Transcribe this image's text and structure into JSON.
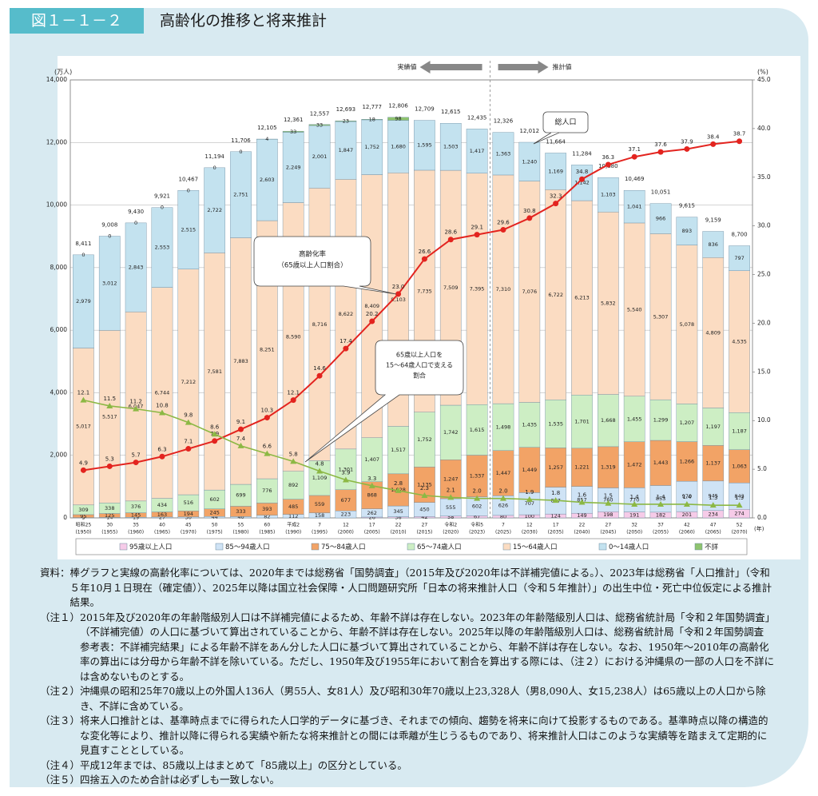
{
  "header": {
    "figure_no": "図１－１－２",
    "title": "高齢化の推移と将来推計"
  },
  "chart_data": {
    "type": "stacked-bar-line",
    "y_unit": "(万人)",
    "y2_unit": "(%)",
    "x_unit": "(年)",
    "categories": [
      "昭和25",
      "30",
      "35",
      "40",
      "45",
      "50",
      "55",
      "60",
      "平成2",
      "7",
      "12",
      "17",
      "22",
      "27",
      "令和2",
      "令和5",
      "7",
      "12",
      "17",
      "22",
      "27",
      "32",
      "37",
      "42",
      "47",
      "52"
    ],
    "category_years": [
      "(1950)",
      "(1955)",
      "(1960)",
      "(1965)",
      "(1970)",
      "(1975)",
      "(1980)",
      "(1985)",
      "(1990)",
      "(1995)",
      "(2000)",
      "(2005)",
      "(2010)",
      "(2015)",
      "(2020)",
      "(2023)",
      "(2025)",
      "(2030)",
      "(2035)",
      "(2040)",
      "(2045)",
      "(2050)",
      "(2055)",
      "(2060)",
      "(2065)",
      "(2070)"
    ],
    "ylim": [
      0,
      14000
    ],
    "yticks": [
      0,
      {
        "value": 2000,
        "label": "2,000"
      },
      {
        "value": 4000,
        "label": "4,000"
      },
      {
        "value": 6000,
        "label": "6,000"
      },
      {
        "value": 8000,
        "label": "8,000"
      },
      {
        "value": 10000,
        "label": "10,000"
      },
      {
        "value": 12000,
        "label": "12,000"
      },
      {
        "value": 14000,
        "label": "14,000"
      }
    ],
    "y2lim": [
      0,
      45
    ],
    "y2ticks": [
      {
        "value": 0,
        "label": "0.0"
      },
      {
        "value": 5,
        "label": "5.0"
      },
      {
        "value": 10,
        "label": "10.0"
      },
      {
        "value": 15,
        "label": "15.0"
      },
      {
        "value": 20,
        "label": "20.0"
      },
      {
        "value": 25,
        "label": "25.0"
      },
      {
        "value": 30,
        "label": "30.0"
      },
      {
        "value": 35,
        "label": "35.0"
      },
      {
        "value": 40,
        "label": "40.0"
      },
      {
        "value": 45,
        "label": "45.0"
      }
    ],
    "grid": true,
    "series": [
      {
        "name": "95歳以上人口",
        "color": "#f6cbe8",
        "values": [
          null,
          null,
          null,
          null,
          null,
          null,
          null,
          null,
          null,
          null,
          null,
          26,
          36,
          42,
          58,
          67,
          80,
          100,
          124,
          149,
          198,
          191,
          182,
          201,
          234,
          274
        ]
      },
      {
        "name": "85～94歳人口",
        "color": "#cfe3f5",
        "values": [
          9,
          14,
          19,
          27,
          30,
          44,
          40,
          82,
          112,
          158,
          223,
          262,
          345,
          450,
          555,
          602,
          626,
          707,
          857,
          857,
          760,
          770,
          853,
          970,
          945,
          843
        ]
      },
      {
        "name": "75～84歳人口",
        "color": "#f2a366",
        "values": [
          95,
          125,
          145,
          163,
          194,
          245,
          333,
          393,
          485,
          559,
          677,
          868,
          1028,
          1135,
          1247,
          1337,
          1447,
          1449,
          1257,
          1221,
          1319,
          1472,
          1443,
          1266,
          1137,
          1063
        ],
        "value_labels": [
          "95",
          "125",
          "145",
          "163",
          "194",
          "245",
          "333",
          "393",
          "485",
          "559",
          "677",
          "868",
          "1,028",
          "1,135",
          "1,247",
          "1,337",
          "1,447",
          "1,449",
          "1,257",
          "1,221",
          "1,319",
          "1,472",
          "1,443",
          "1,266",
          "1,137",
          "1,063"
        ]
      },
      {
        "name": "65～74歳人口",
        "color": "#cdeec4",
        "values": [
          309,
          338,
          376,
          434,
          516,
          602,
          699,
          776,
          892,
          1109,
          1301,
          1407,
          1517,
          1752,
          1742,
          1615,
          1498,
          1435,
          1535,
          1701,
          1668,
          1455,
          1299,
          1207,
          1197,
          1187
        ],
        "value_labels": [
          "309",
          "338",
          "376",
          "434",
          "516",
          "602",
          "699",
          "776",
          "892",
          "1,109",
          "1,301",
          "1,407",
          "1,517",
          "1,752",
          "1,742",
          "1,615",
          "1,498",
          "1,435",
          "1,535",
          "1,701",
          "1,668",
          "1,455",
          "1,299",
          "1,207",
          "1,197",
          "1,187"
        ]
      },
      {
        "name": "15～64歳人口",
        "color": "#fbdcc2",
        "values": [
          5017,
          5517,
          6047,
          6744,
          7212,
          7581,
          7883,
          8251,
          8590,
          8716,
          8622,
          8409,
          8103,
          7735,
          7509,
          7395,
          7310,
          7076,
          6722,
          6213,
          5832,
          5540,
          5307,
          5078,
          4809,
          4535
        ],
        "value_labels": [
          "5,017",
          "5,517",
          "6,047",
          "6,744",
          "7,212",
          "7,581",
          "7,883",
          "8,251",
          "8,590",
          "8,716",
          "8,622",
          "8,409",
          "8,103",
          "7,735",
          "7,509",
          "7,395",
          "7,310",
          "7,076",
          "6,722",
          "6,213",
          "5,832",
          "5,540",
          "5,307",
          "5,078",
          "4,809",
          "4,535"
        ]
      },
      {
        "name": "0～14歳人口",
        "color": "#c3e2ef",
        "values": [
          2979,
          3012,
          2843,
          2553,
          2515,
          2722,
          2751,
          2603,
          2249,
          2001,
          1847,
          1752,
          1680,
          1595,
          1503,
          1417,
          1363,
          1240,
          1169,
          1142,
          1103,
          1041,
          966,
          893,
          836,
          797
        ],
        "value_labels": [
          "2,979",
          "3,012",
          "2,843",
          "2,553",
          "2,515",
          "2,722",
          "2,751",
          "2,603",
          "2,249",
          "2,001",
          "1,847",
          "1,752",
          "1,680",
          "1,595",
          "1,503",
          "1,417",
          "1,363",
          "1,240",
          "1,169",
          "1,142",
          "1,103",
          "1,041",
          "966",
          "893",
          "836",
          "797"
        ]
      },
      {
        "name": "不詳",
        "color": "#8fc46f",
        "values": [
          0,
          0,
          0,
          0,
          0,
          0,
          0,
          4,
          33,
          33,
          23,
          18,
          98,
          null,
          null,
          null,
          null,
          null,
          null,
          null,
          null,
          null,
          null,
          null,
          null,
          null
        ]
      }
    ],
    "totals": {
      "values": [
        8411,
        9008,
        9430,
        9921,
        10467,
        11194,
        11706,
        12105,
        12361,
        12557,
        12693,
        12777,
        12806,
        12709,
        12615,
        12435,
        12326,
        12012,
        11664,
        11284,
        10880,
        10469,
        10051,
        9615,
        9159,
        8700
      ],
      "value_labels": [
        "8,411",
        "9,008",
        "9,430",
        "9,921",
        "10,467",
        "11,194",
        "11,706",
        "12,105",
        "12,361",
        "12,557",
        "12,693",
        "12,777",
        "12,806",
        "12,709",
        "12,615",
        "12,435",
        "12,326",
        "12,012",
        "11,664",
        "11,284",
        "10,880",
        "10,469",
        "10,051",
        "9,615",
        "9,159",
        "8,700"
      ]
    },
    "lines": [
      {
        "name": "高齢化率",
        "axis": "y2",
        "color": "#e3241f",
        "marker": "circle",
        "values": [
          4.9,
          5.3,
          5.7,
          6.3,
          7.1,
          7.9,
          9.1,
          10.3,
          12.1,
          14.6,
          17.4,
          20.2,
          23.0,
          26.6,
          28.6,
          29.1,
          29.6,
          30.8,
          32.3,
          34.8,
          36.3,
          37.1,
          37.6,
          37.9,
          38.4,
          38.7
        ],
        "value_labels": [
          "4.9",
          "5.3",
          "5.7",
          "6.3",
          "7.1",
          "7.9",
          "9.1",
          "10.3",
          "12.1",
          "14.6",
          "17.4",
          "20.2",
          "23.0",
          "26.6",
          "28.6",
          "29.1",
          "29.6",
          "30.8",
          "32.3",
          "34.8",
          "36.3",
          "37.1",
          "37.6",
          "37.9",
          "38.4",
          "38.7"
        ]
      },
      {
        "name": "支える割合",
        "axis": "y2",
        "color": "#8cb844",
        "marker": "triangle",
        "values": [
          12.1,
          11.5,
          11.2,
          10.8,
          9.8,
          8.6,
          7.4,
          6.6,
          5.8,
          4.8,
          3.9,
          3.3,
          2.8,
          2.3,
          2.1,
          2.0,
          2.0,
          1.9,
          1.8,
          1.6,
          1.5,
          1.4,
          1.4,
          1.4,
          1.3,
          1.3
        ],
        "value_labels": [
          "12.1",
          "11.5",
          "11.2",
          "10.8",
          "9.8",
          "8.6",
          "7.4",
          "6.6",
          "5.8",
          "4.8",
          "3.9",
          "3.3",
          "2.8",
          "2.3",
          "2.1",
          "2.0",
          "2.0",
          "1.9",
          "1.8",
          "1.6",
          "1.5",
          "1.4",
          "1.4",
          "1.4",
          "1.3",
          "1.3"
        ]
      }
    ],
    "annotations": {
      "actual": "実績値",
      "projected": "推計値",
      "total": "総人口",
      "aging": [
        "高齢化率",
        "（65歳以上人口割合）"
      ],
      "support": [
        "65歳以上人口を",
        "15～64歳人口で支える",
        "割合"
      ]
    }
  },
  "notes": [
    {
      "label": "資料：",
      "text": "棒グラフと実線の高齢化率については、2020年までは総務省「国勢調査」（2015年及び2020年は不詳補完値による。）、2023年は総務省「人口推計」（令和５年10月１日現在（確定値））、2025年以降は国立社会保障・人口問題研究所「日本の将来推計人口（令和５年推計）」の出生中位・死亡中位仮定による推計結果。"
    },
    {
      "label": "（注１）",
      "text": "2015年及び2020年の年齢階級別人口は不詳補完値によるため、年齢不詳は存在しない。2023年の年齢階級別人口は、総務省統計局「令和２年国勢調査」（不詳補完値）の人口に基づいて算出されていることから、年齢不詳は存在しない。2025年以降の年齢階級別人口は、総務省統計局「令和２年国勢調査　参考表：不詳補完結果」による年齢不詳をあん分した人口に基づいて算出されていることから、年齢不詳は存在しない。なお、1950年～2010年の高齢化率の算出には分母から年齢不詳を除いている。ただし、1950年及び1955年において割合を算出する際には、（注２）における沖縄県の一部の人口を不詳には含めないものとする。"
    },
    {
      "label": "（注２）",
      "text": "沖縄県の昭和25年70歳以上の外国人136人（男55人、女81人）及び昭和30年70歳以上23,328人（男8,090人、女15,238人）は65歳以上の人口から除き、不詳に含めている。"
    },
    {
      "label": "（注３）",
      "text": "将来人口推計とは、基準時点までに得られた人口学的データに基づき、それまでの傾向、趨勢を将来に向けて投影するものである。基準時点以降の構造的な変化等により、推計以降に得られる実績や新たな将来推計との間には乖離が生じうるものであり、将来推計人口はこのような実績等を踏まえて定期的に見直すこととしている。"
    },
    {
      "label": "（注４）",
      "text": "平成12年までは、85歳以上はまとめて「85歳以上」の区分としている。"
    },
    {
      "label": "（注５）",
      "text": "四捨五入のため合計は必ずしも一致しない。"
    }
  ]
}
